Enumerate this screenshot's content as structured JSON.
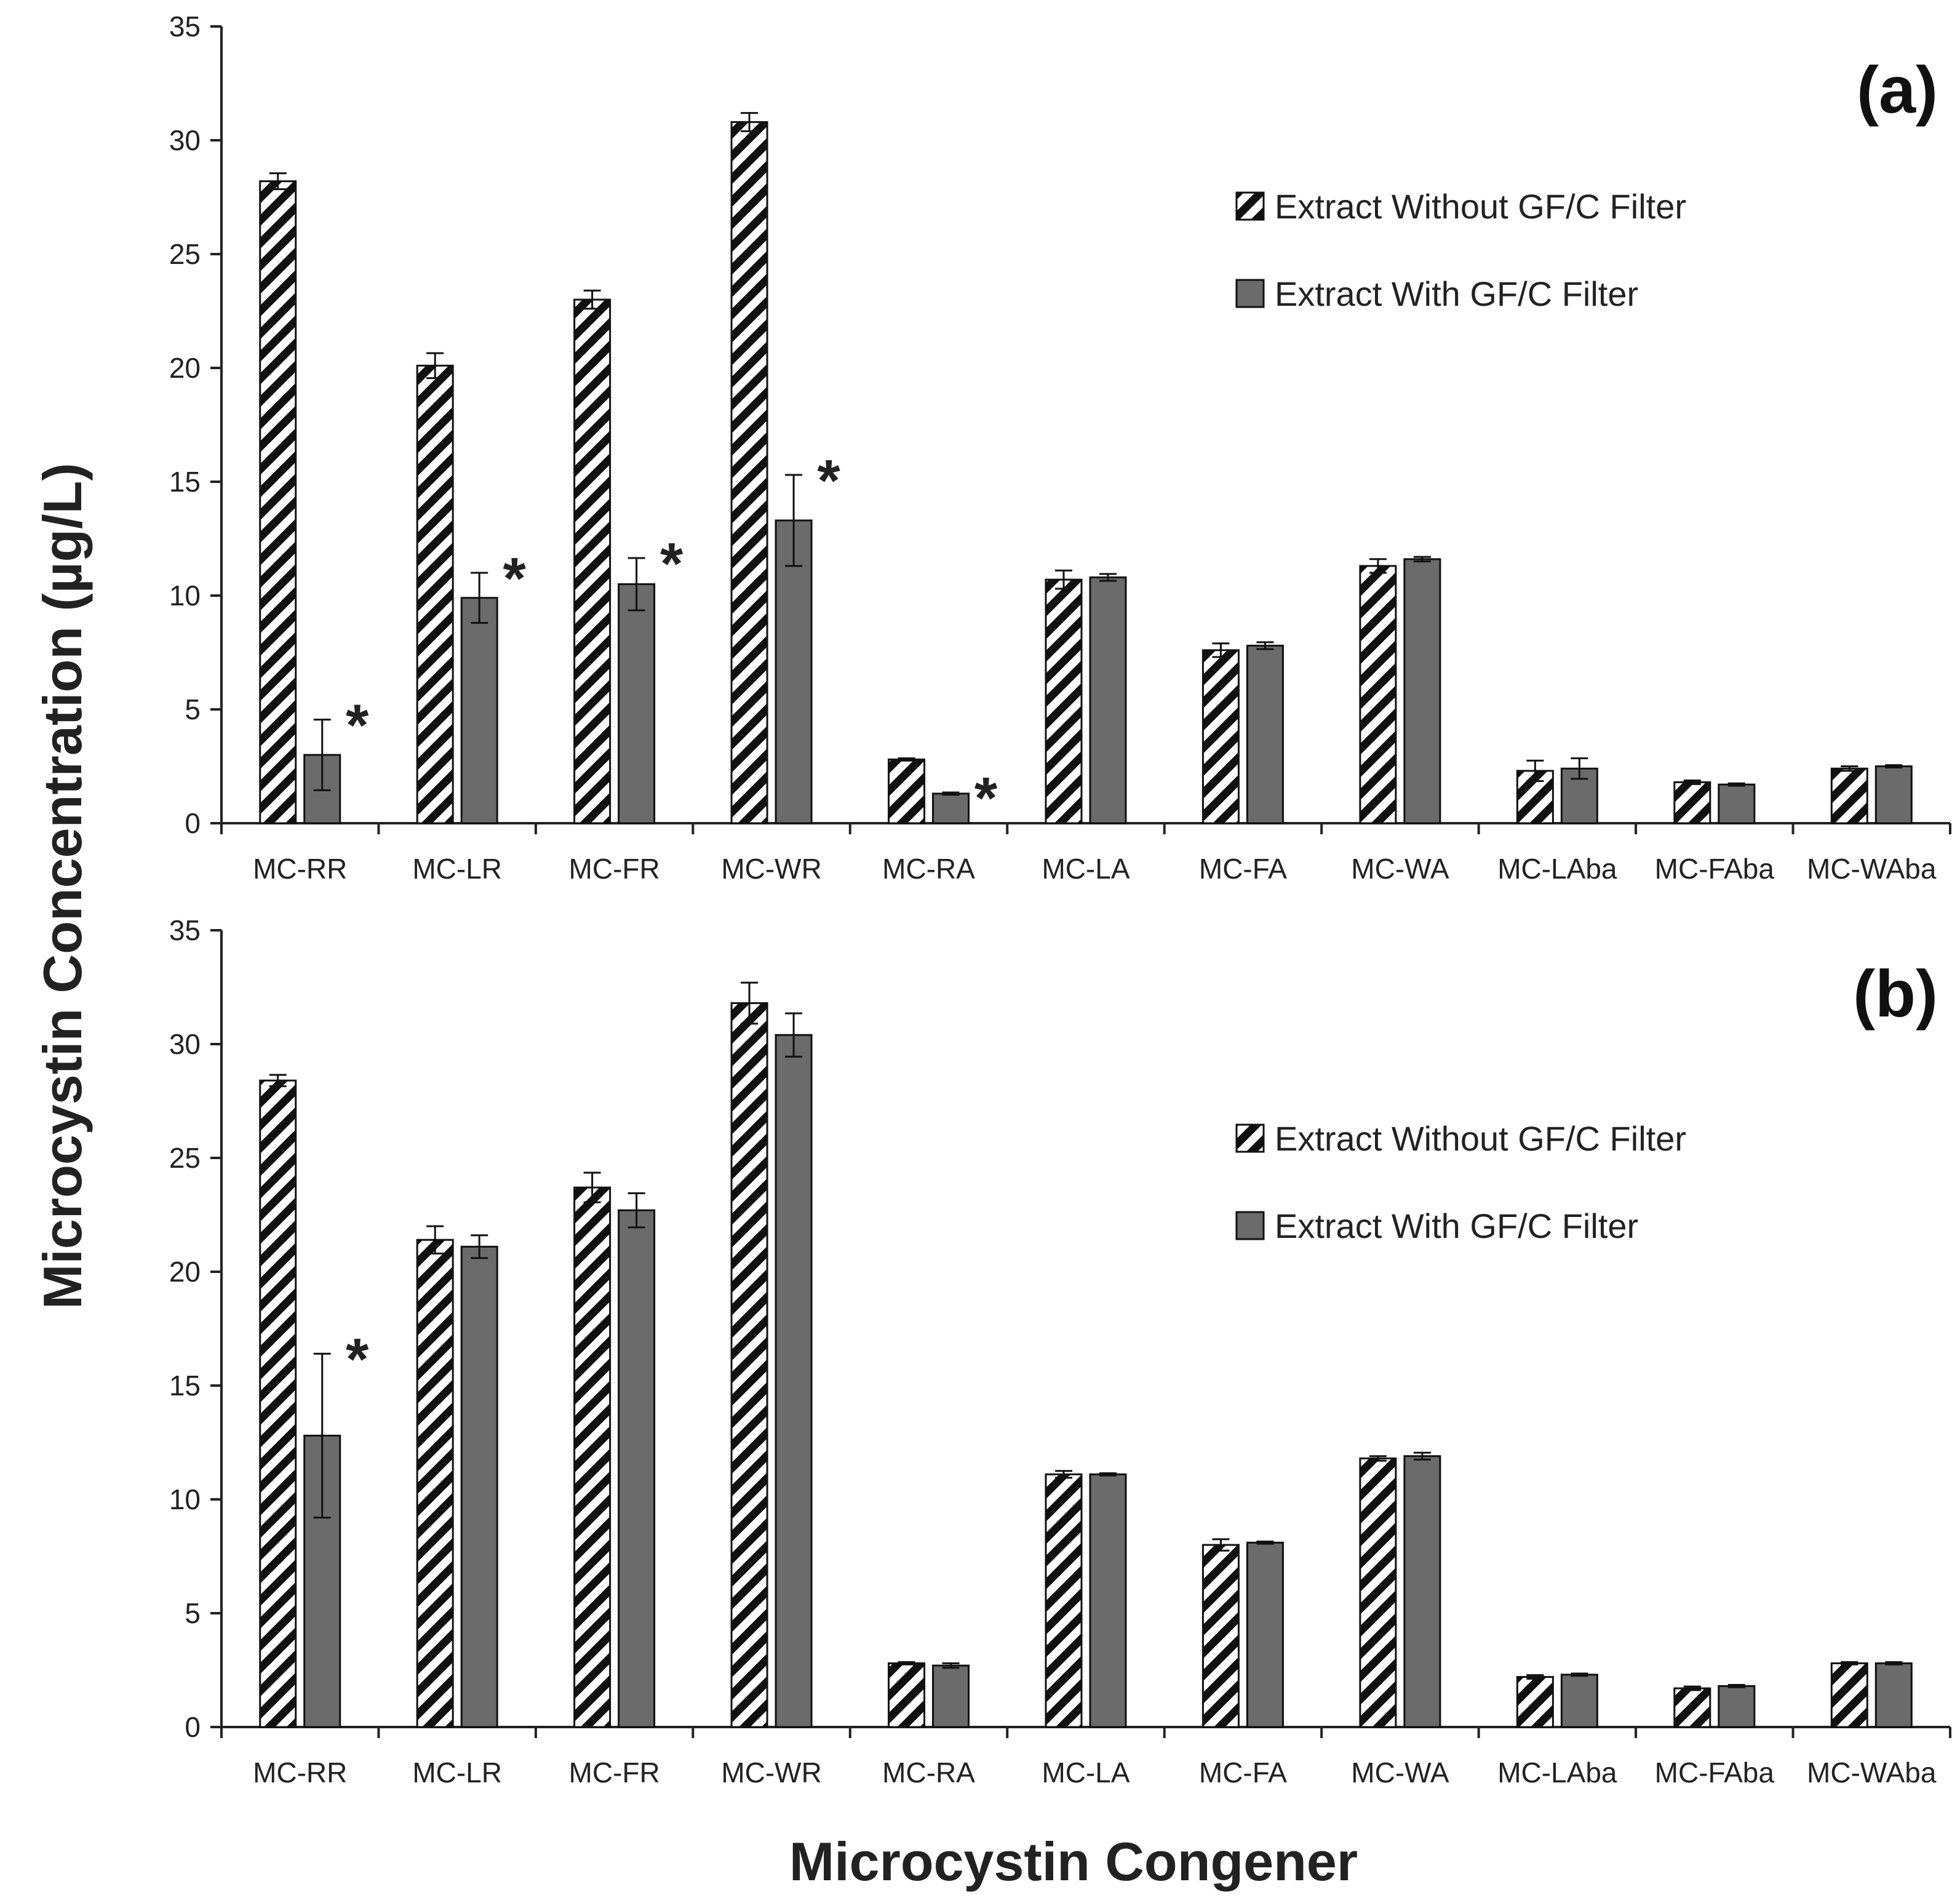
{
  "colors": {
    "hatch_stroke": "#111111",
    "hatch_fill": "#ffffff",
    "solid_bar": "#6b6b6b",
    "axis": "#222222"
  },
  "ylabel": "Microcystin Concentration (µg/L)",
  "xlabel": "Microcystin Congener",
  "chart_data": [
    {
      "type": "bar",
      "panel": "(a)",
      "title": "",
      "xlabel": "Microcystin Congener",
      "ylabel": "Microcystin Concentration (µg/L)",
      "ylim": [
        0,
        35
      ],
      "yticks": [
        0,
        5,
        10,
        15,
        20,
        25,
        30,
        35
      ],
      "categories": [
        "MC-RR",
        "MC-LR",
        "MC-FR",
        "MC-WR",
        "MC-RA",
        "MC-LA",
        "MC-FA",
        "MC-WA",
        "MC-LAba",
        "MC-FAba",
        "MC-WAba"
      ],
      "series": [
        {
          "name": "Extract Without GF/C Filter",
          "style": "hatched",
          "values": [
            28.2,
            20.1,
            23.0,
            30.8,
            2.8,
            10.7,
            7.6,
            11.3,
            2.3,
            1.8,
            2.4
          ],
          "errors": [
            0.35,
            0.55,
            0.4,
            0.4,
            0.05,
            0.4,
            0.3,
            0.3,
            0.45,
            0.08,
            0.1
          ]
        },
        {
          "name": "Extract With GF/C Filter",
          "style": "solid",
          "values": [
            3.0,
            9.9,
            10.5,
            13.3,
            1.3,
            10.8,
            7.8,
            11.6,
            2.4,
            1.7,
            2.5
          ],
          "errors": [
            1.55,
            1.1,
            1.15,
            2.0,
            0.05,
            0.15,
            0.15,
            0.1,
            0.45,
            0.05,
            0.05
          ]
        }
      ],
      "significance": [
        "*",
        "*",
        "*",
        "*",
        "*",
        "",
        "",
        "",
        "",
        "",
        ""
      ],
      "legend_position": "top-right"
    },
    {
      "type": "bar",
      "panel": "(b)",
      "title": "",
      "xlabel": "Microcystin Congener",
      "ylabel": "Microcystin Concentration (µg/L)",
      "ylim": [
        0,
        35
      ],
      "yticks": [
        0,
        5,
        10,
        15,
        20,
        25,
        30,
        35
      ],
      "categories": [
        "MC-RR",
        "MC-LR",
        "MC-FR",
        "MC-WR",
        "MC-RA",
        "MC-LA",
        "MC-FA",
        "MC-WA",
        "MC-LAba",
        "MC-FAba",
        "MC-WAba"
      ],
      "series": [
        {
          "name": "Extract Without GF/C Filter",
          "style": "hatched",
          "values": [
            28.4,
            21.4,
            23.7,
            31.8,
            2.8,
            11.1,
            8.0,
            11.8,
            2.2,
            1.7,
            2.8
          ],
          "errors": [
            0.25,
            0.6,
            0.65,
            0.9,
            0.05,
            0.15,
            0.25,
            0.1,
            0.08,
            0.08,
            0.05
          ]
        },
        {
          "name": "Extract With GF/C Filter",
          "style": "solid",
          "values": [
            12.8,
            21.1,
            22.7,
            30.4,
            2.7,
            11.1,
            8.1,
            11.9,
            2.3,
            1.8,
            2.8
          ],
          "errors": [
            3.6,
            0.5,
            0.75,
            0.95,
            0.1,
            0.05,
            0.05,
            0.15,
            0.05,
            0.05,
            0.05
          ]
        }
      ],
      "significance": [
        "*",
        "",
        "",
        "",
        "",
        "",
        "",
        "",
        "",
        "",
        ""
      ],
      "legend_position": "top-right"
    }
  ]
}
